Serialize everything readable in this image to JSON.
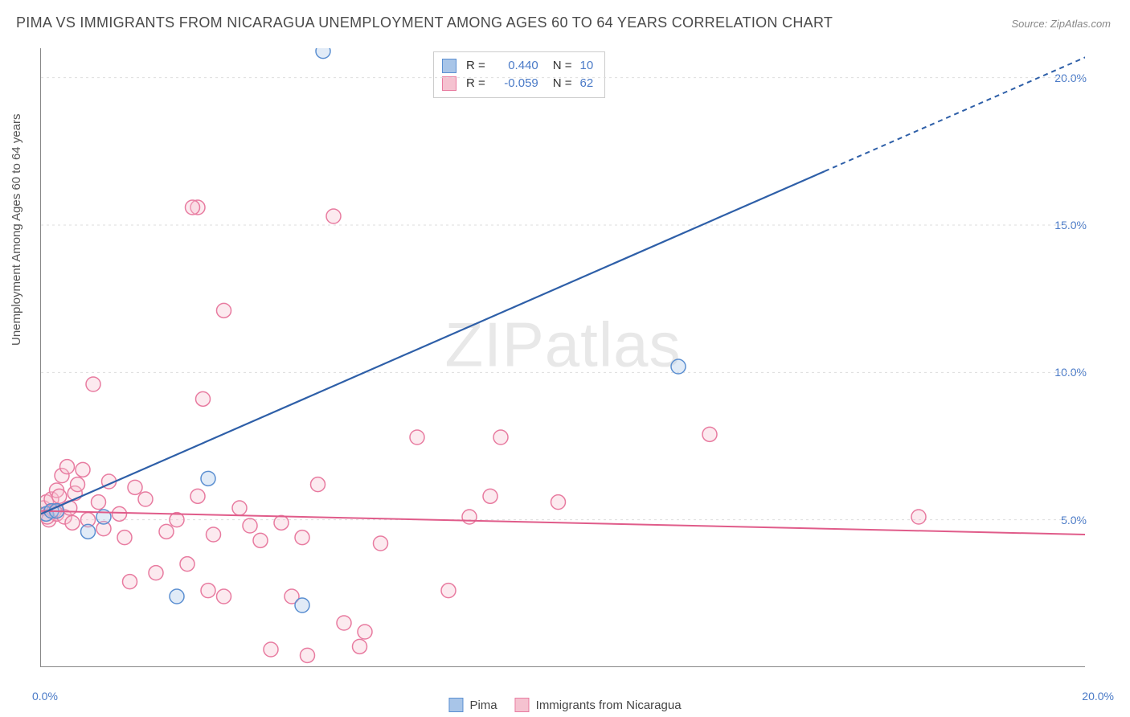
{
  "title": "PIMA VS IMMIGRANTS FROM NICARAGUA UNEMPLOYMENT AMONG AGES 60 TO 64 YEARS CORRELATION CHART",
  "source": "Source: ZipAtlas.com",
  "ylabel": "Unemployment Among Ages 60 to 64 years",
  "watermark_zip": "ZIP",
  "watermark_atlas": "atlas",
  "chart": {
    "type": "scatter",
    "xlim": [
      0,
      20
    ],
    "ylim": [
      0,
      21
    ],
    "x_ticks": [
      2,
      4,
      6,
      8,
      10,
      12,
      14,
      16,
      18
    ],
    "y_gridlines": [
      5,
      10,
      15,
      20
    ],
    "y_tick_labels": [
      "5.0%",
      "10.0%",
      "15.0%",
      "20.0%"
    ],
    "x_origin_label": "0.0%",
    "x_max_label": "20.0%",
    "background_color": "#ffffff",
    "grid_color": "#dddddd",
    "axis_color": "#888888",
    "marker_radius": 9,
    "marker_stroke_width": 1.5,
    "series": [
      {
        "name": "Pima",
        "color_fill": "#a8c5e8",
        "color_stroke": "#5b8fd1",
        "r_label": "R =",
        "r_value": "0.440",
        "n_label": "N =",
        "n_value": "10",
        "points": [
          [
            0.1,
            5.2
          ],
          [
            0.2,
            5.3
          ],
          [
            0.3,
            5.3
          ],
          [
            0.9,
            4.6
          ],
          [
            1.2,
            5.1
          ],
          [
            2.6,
            2.4
          ],
          [
            3.2,
            6.4
          ],
          [
            5.0,
            2.1
          ],
          [
            5.4,
            20.9
          ],
          [
            12.2,
            10.2
          ]
        ],
        "trend_line": {
          "x1": 0,
          "y1": 5.2,
          "x2": 20,
          "y2": 20.7,
          "dash_from_x": 15.0
        }
      },
      {
        "name": "Immigrants from Nicaragua",
        "color_fill": "#f5c2d0",
        "color_stroke": "#e87ba0",
        "r_label": "R =",
        "r_value": "-0.059",
        "n_label": "N =",
        "n_value": "62",
        "points": [
          [
            0.05,
            5.4
          ],
          [
            0.1,
            5.2
          ],
          [
            0.1,
            5.6
          ],
          [
            0.15,
            5.0
          ],
          [
            0.2,
            5.7
          ],
          [
            0.25,
            5.3
          ],
          [
            0.3,
            6.0
          ],
          [
            0.3,
            5.2
          ],
          [
            0.35,
            5.8
          ],
          [
            0.4,
            6.5
          ],
          [
            0.45,
            5.1
          ],
          [
            0.5,
            6.8
          ],
          [
            0.55,
            5.4
          ],
          [
            0.6,
            4.9
          ],
          [
            0.65,
            5.9
          ],
          [
            0.7,
            6.2
          ],
          [
            0.8,
            6.7
          ],
          [
            0.9,
            5.0
          ],
          [
            1.0,
            9.6
          ],
          [
            1.1,
            5.6
          ],
          [
            1.2,
            4.7
          ],
          [
            1.3,
            6.3
          ],
          [
            1.5,
            5.2
          ],
          [
            1.6,
            4.4
          ],
          [
            1.7,
            2.9
          ],
          [
            1.8,
            6.1
          ],
          [
            2.0,
            5.7
          ],
          [
            2.2,
            3.2
          ],
          [
            2.4,
            4.6
          ],
          [
            2.6,
            5.0
          ],
          [
            2.8,
            3.5
          ],
          [
            3.0,
            5.8
          ],
          [
            3.0,
            15.6
          ],
          [
            3.1,
            9.1
          ],
          [
            3.2,
            2.6
          ],
          [
            3.3,
            4.5
          ],
          [
            3.5,
            12.1
          ],
          [
            3.5,
            2.4
          ],
          [
            3.8,
            5.4
          ],
          [
            4.0,
            4.8
          ],
          [
            4.2,
            4.3
          ],
          [
            4.4,
            0.6
          ],
          [
            4.6,
            4.9
          ],
          [
            4.8,
            2.4
          ],
          [
            5.0,
            4.4
          ],
          [
            5.1,
            0.4
          ],
          [
            5.3,
            6.2
          ],
          [
            5.6,
            15.3
          ],
          [
            5.8,
            1.5
          ],
          [
            6.1,
            0.7
          ],
          [
            6.2,
            1.2
          ],
          [
            6.5,
            4.2
          ],
          [
            7.2,
            7.8
          ],
          [
            7.8,
            2.6
          ],
          [
            8.2,
            5.1
          ],
          [
            8.6,
            5.8
          ],
          [
            8.8,
            7.8
          ],
          [
            9.9,
            5.6
          ],
          [
            12.8,
            7.9
          ],
          [
            16.8,
            5.1
          ],
          [
            2.9,
            15.6
          ],
          [
            0.12,
            5.1
          ]
        ],
        "trend_line": {
          "x1": 0,
          "y1": 5.3,
          "x2": 20,
          "y2": 4.5,
          "dash_from_x": 20
        }
      }
    ]
  },
  "bottom_legend": [
    {
      "label": "Pima",
      "fill": "#a8c5e8",
      "stroke": "#5b8fd1"
    },
    {
      "label": "Immigrants from Nicaragua",
      "fill": "#f5c2d0",
      "stroke": "#e87ba0"
    }
  ]
}
